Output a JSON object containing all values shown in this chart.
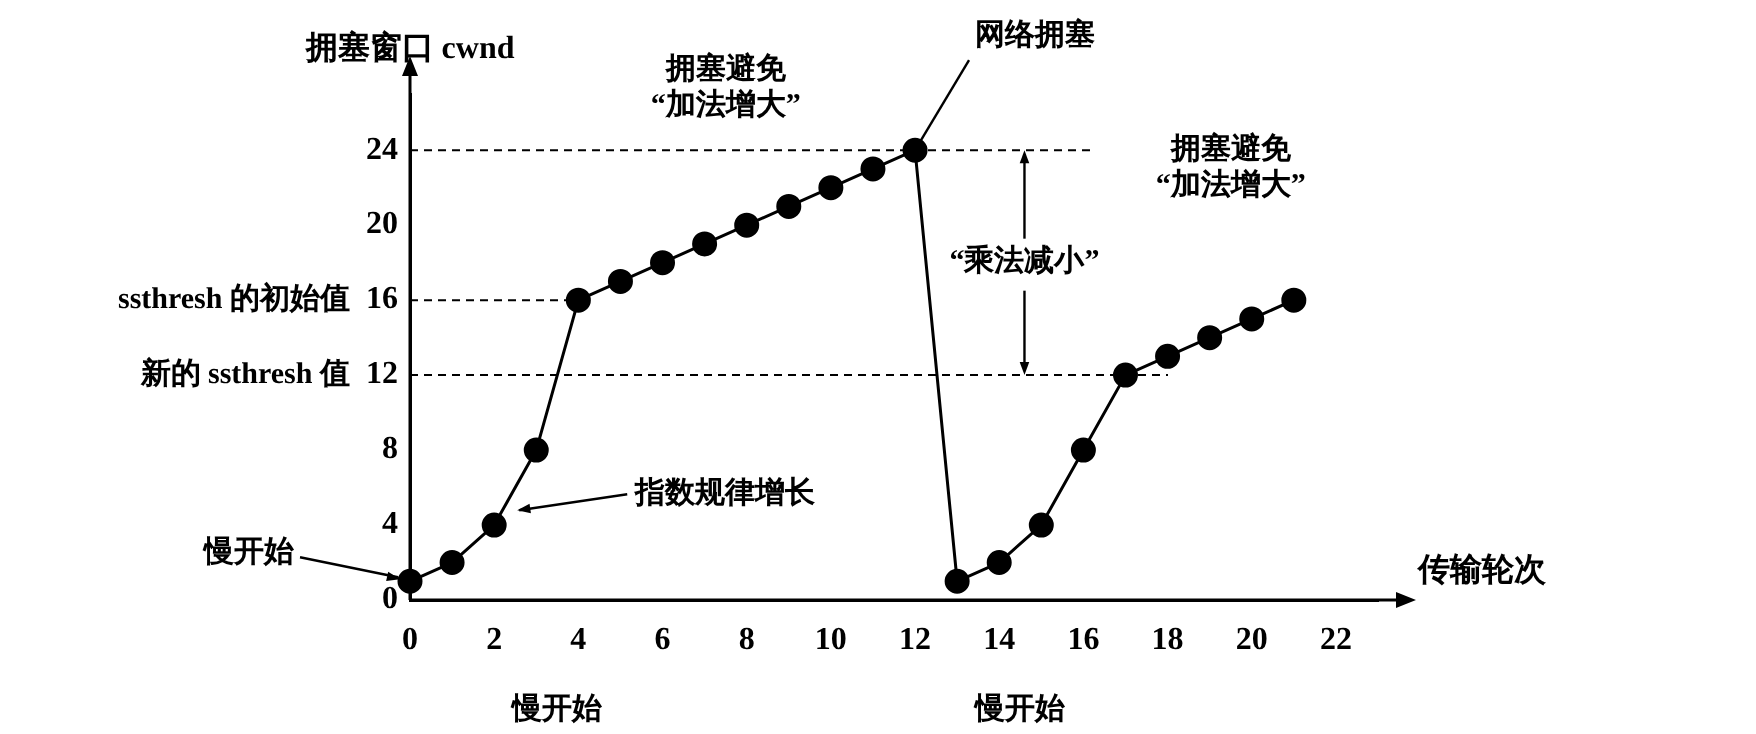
{
  "chart_data": {
    "type": "line",
    "xlabel": "传输轮次",
    "ylabel": "拥塞窗口 cwnd",
    "x": [
      0,
      1,
      2,
      3,
      4,
      5,
      6,
      7,
      8,
      9,
      10,
      11,
      12,
      13,
      14,
      15,
      16,
      17,
      18,
      19,
      20,
      21
    ],
    "series": [
      {
        "color": "#000000",
        "values": [
          1,
          2,
          4,
          8,
          16,
          17,
          18,
          19,
          20,
          21,
          22,
          23,
          24,
          1,
          2,
          4,
          8,
          12,
          13,
          14,
          15,
          16
        ]
      }
    ],
    "xlim": [
      0,
      23
    ],
    "ylim": [
      0,
      27
    ],
    "xticks": [
      0,
      2,
      4,
      6,
      8,
      10,
      12,
      14,
      16,
      18,
      20,
      22
    ],
    "yticks": [
      0,
      4,
      8,
      12,
      16,
      20,
      24
    ],
    "grid": false,
    "legend": false,
    "marker": "circle",
    "line_style": "solid",
    "ref_lines": [
      {
        "axis": "y",
        "value": 24,
        "line_style": "dashed"
      },
      {
        "axis": "y",
        "value": 16,
        "label": "ssthresh 的初始值",
        "line_style": "dashed"
      },
      {
        "axis": "y",
        "value": 12,
        "label": "新的 ssthresh 值",
        "line_style": "dashed"
      }
    ],
    "annotations": [
      {
        "text": "慢开始",
        "x": 0,
        "y": 1
      },
      {
        "text": "指数规律增长",
        "x": 2.5,
        "y": 5
      },
      {
        "text": "网络拥塞",
        "x": 12,
        "y": 24
      },
      "拥塞避免\n“加法增大”",
      "拥塞避免\n“加法增大”",
      {
        "text": "“乘法减小”",
        "x": 14.6,
        "y": 24
      },
      "慢开始",
      "慢开始"
    ]
  }
}
